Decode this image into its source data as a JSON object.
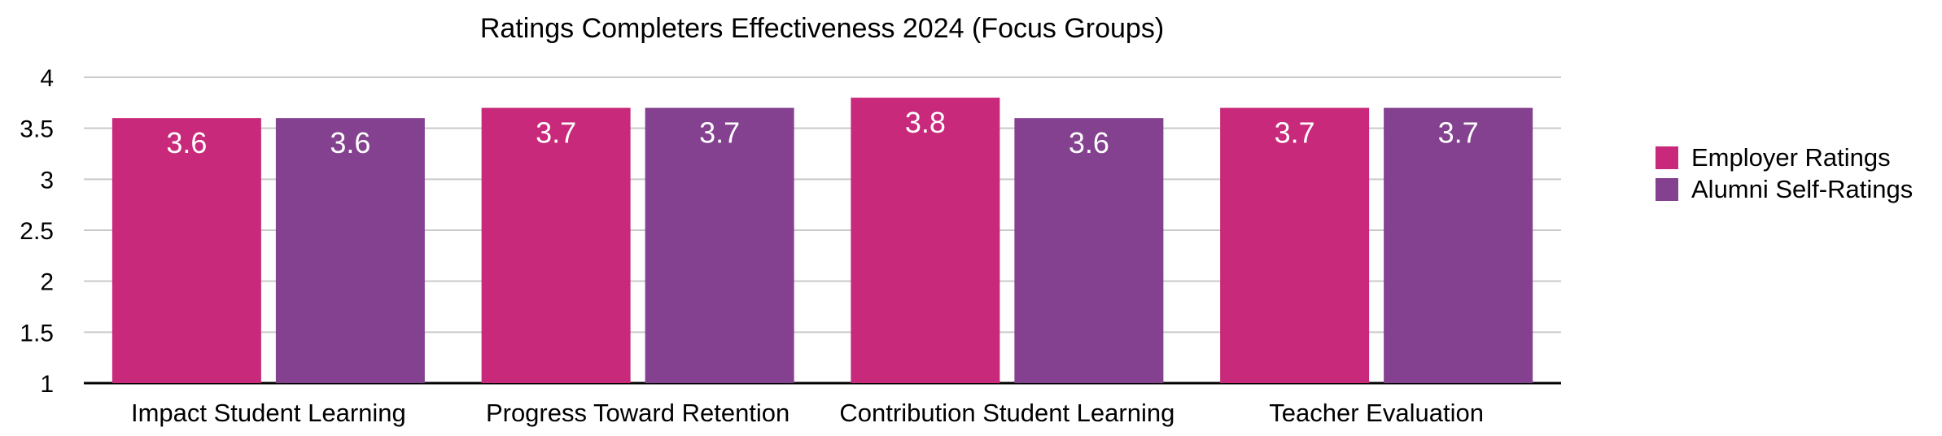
{
  "chart_data": {
    "type": "bar",
    "title": "Ratings Completers Effectiveness 2024 (Focus Groups)",
    "xlabel": "",
    "ylabel": "",
    "ylim": [
      1,
      4
    ],
    "yticks": [
      1,
      1.5,
      2,
      2.5,
      3,
      3.5,
      4
    ],
    "ytick_labels": [
      "1",
      "1.5",
      "2",
      "2.5",
      "3",
      "3.5",
      "4"
    ],
    "grid": true,
    "legend_position": "right",
    "categories": [
      "Impact Student Learning",
      "Progress Toward Retention",
      "Contribution Student Learning",
      "Teacher Evaluation"
    ],
    "series": [
      {
        "name": "Employer Ratings",
        "color": "#C8297A",
        "values": [
          3.6,
          3.7,
          3.8,
          3.7
        ],
        "labels": [
          "3.6",
          "3.7",
          "3.8",
          "3.7"
        ]
      },
      {
        "name": "Alumni Self-Ratings",
        "color": "#84418F",
        "values": [
          3.6,
          3.7,
          3.6,
          3.7
        ],
        "labels": [
          "3.6",
          "3.7",
          "3.6",
          "3.7"
        ]
      }
    ],
    "colors": {
      "grid": "#C9C9C9",
      "axis": "#000000",
      "text": "#000000",
      "data_label": "#FFFFFF"
    }
  }
}
